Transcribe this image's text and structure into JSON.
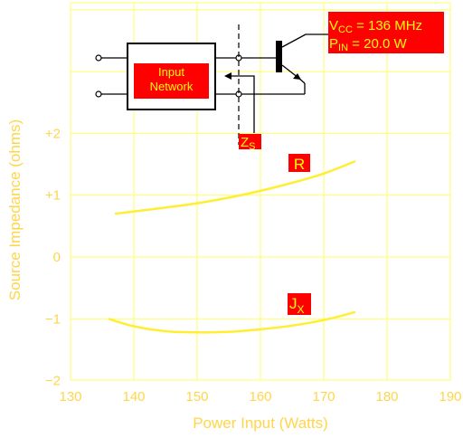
{
  "chart_data": {
    "type": "line",
    "xlabel": "Power Input (Watts)",
    "ylabel": "Source Impedance (ohms)",
    "xlim": [
      130,
      190
    ],
    "ylim": [
      -2,
      4
    ],
    "x_ticks": [
      "130",
      "140",
      "150",
      "160",
      "170",
      "180",
      "190"
    ],
    "y_ticks": [
      {
        "value": 2,
        "label": "+2"
      },
      {
        "value": 1,
        "label": "+1"
      },
      {
        "value": 0,
        "label": "0"
      },
      {
        "value": -1,
        "label": "−1"
      },
      {
        "value": -2,
        "label": "−2"
      }
    ],
    "grid": true,
    "series": [
      {
        "name": "R",
        "label_main": "R",
        "label_sub": "",
        "color": "#ffee33",
        "x": [
          137,
          145,
          150,
          155,
          160,
          165,
          170,
          175
        ],
        "y": [
          0.7,
          0.8,
          0.87,
          0.96,
          1.07,
          1.2,
          1.35,
          1.55
        ]
      },
      {
        "name": "Jx",
        "label_main": "J",
        "label_sub": "X",
        "color": "#ffee33",
        "x": [
          136,
          140,
          145,
          150,
          155,
          160,
          165,
          170,
          175
        ],
        "y": [
          -1.0,
          -1.12,
          -1.2,
          -1.22,
          -1.21,
          -1.17,
          -1.11,
          -1.02,
          -0.89
        ]
      }
    ]
  },
  "schematic": {
    "network_line1": "Input",
    "network_line2": "Network",
    "zs_main": "Z",
    "zs_sub": "S",
    "vcc_main": "V",
    "vcc_sub": "CC",
    "vcc_value": " = 136 MHz",
    "pin_main": "P",
    "pin_sub": "IN",
    "pin_value": " = 20.0 W",
    "box_color": "#ff0000",
    "text_color": "#ffff00"
  }
}
